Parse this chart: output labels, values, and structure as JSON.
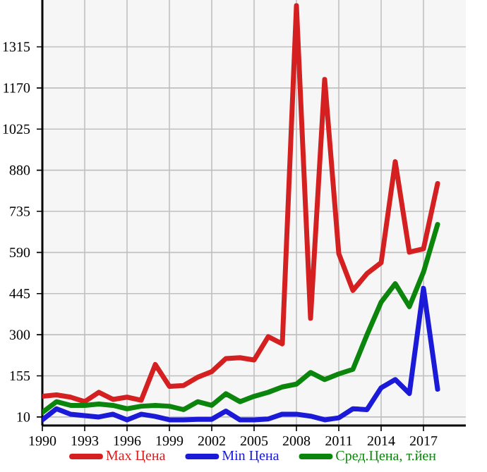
{
  "chart_data": {
    "type": "line",
    "x": [
      1990,
      1991,
      1992,
      1993,
      1994,
      1995,
      1996,
      1997,
      1998,
      1999,
      2000,
      2001,
      2002,
      2003,
      2004,
      2005,
      2006,
      2007,
      2008,
      2009,
      2010,
      2011,
      2012,
      2013,
      2014,
      2015,
      2016,
      2017,
      2018
    ],
    "series": [
      {
        "name": "Max Цена",
        "color": "#d42020",
        "values": [
          83,
          88,
          80,
          64,
          97,
          72,
          80,
          69,
          195,
          118,
          121,
          150,
          170,
          216,
          219,
          211,
          293,
          268,
          1460,
          358,
          1200,
          586,
          456,
          516,
          554,
          910,
          591,
          603,
          833
        ]
      },
      {
        "name": "Min Цена",
        "color": "#1a1ad8",
        "values": [
          0,
          39,
          20,
          15,
          10,
          20,
          0,
          20,
          12,
          0,
          0,
          2,
          2,
          31,
          0,
          0,
          3,
          20,
          20,
          13,
          0,
          7,
          39,
          36,
          113,
          142,
          93,
          464,
          108
        ]
      },
      {
        "name": "Сред.Цена, т.йен",
        "color": "#0b850b",
        "values": [
          26,
          64,
          51,
          51,
          56,
          51,
          39,
          48,
          51,
          48,
          36,
          64,
          51,
          92,
          64,
          83,
          97,
          116,
          126,
          167,
          142,
          162,
          178,
          300,
          415,
          480,
          399,
          521,
          689
        ]
      }
    ],
    "xlim": [
      1990,
      2020
    ],
    "xticks": [
      1990,
      1993,
      1996,
      1999,
      2002,
      2005,
      2008,
      2011,
      2014,
      2017
    ],
    "ylim": [
      -20,
      1480
    ],
    "yticks": [
      10,
      155,
      300,
      445,
      590,
      735,
      880,
      1025,
      1170,
      1315
    ],
    "grid": true,
    "legend": "bottom",
    "marker": "none",
    "line_style": "solid"
  }
}
